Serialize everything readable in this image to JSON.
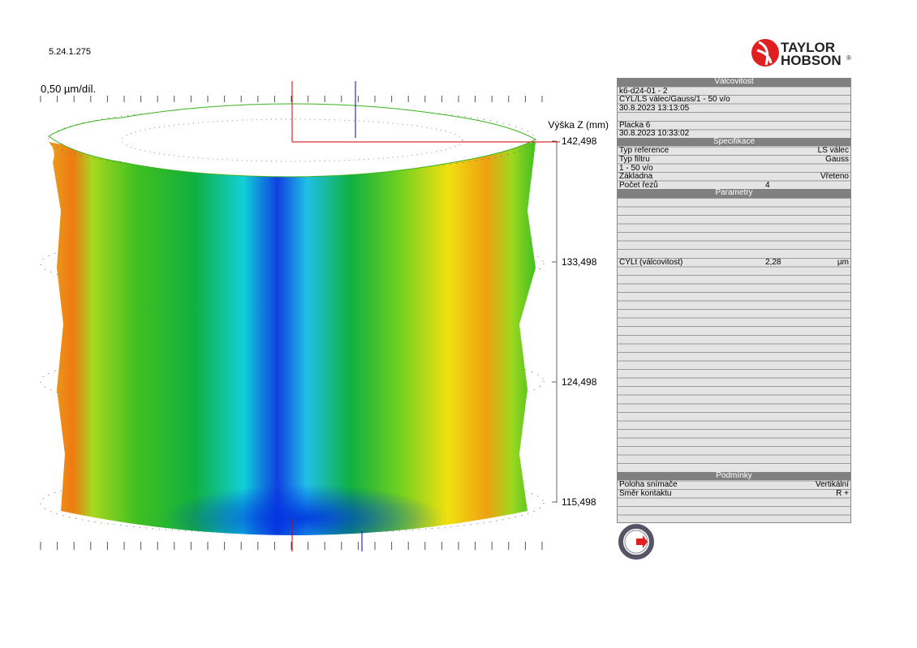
{
  "version": "5.24.1.275",
  "logo": {
    "line1": "TAYLOR",
    "line2": "HOBSON",
    "mark": "®"
  },
  "plot": {
    "scale_label": "0,50 µm/díl.",
    "axis_title": "Výška Z (mm)",
    "axis_labels": [
      "142,498",
      "133,498",
      "124,498",
      "115,498"
    ]
  },
  "panel": {
    "sections": [
      {
        "title": "Válcovitost",
        "rows": [
          {
            "label": "k6-d24-01 - 2"
          },
          {
            "label": "CYL/LS válec/Gauss/1 - 50 v/o"
          },
          {
            "label": "30.8.2023 13:13:05"
          },
          {
            "label": "Placka 6"
          },
          {
            "label": "30.8.2023 10:33:02"
          }
        ]
      },
      {
        "title": "Specifikace",
        "rows": [
          {
            "label": "Typ reference",
            "value": "LS válec"
          },
          {
            "label": "Typ filtru",
            "value": "Gauss"
          },
          {
            "label": "1 - 50 v/o"
          },
          {
            "label": "Základna",
            "value": "Vřeteno"
          },
          {
            "label": "Počet řezů",
            "mid": "4"
          }
        ]
      },
      {
        "title": "Parametry",
        "rows": [
          {
            "label": "CYLt (válcovitost)",
            "mid": "2,28",
            "value": "µm"
          }
        ]
      },
      {
        "title": "Podmínky",
        "rows": [
          {
            "label": "Poloha snímače",
            "value": "Vertikální"
          },
          {
            "label": "Směr kontaktu",
            "value": "R +"
          }
        ]
      }
    ]
  }
}
